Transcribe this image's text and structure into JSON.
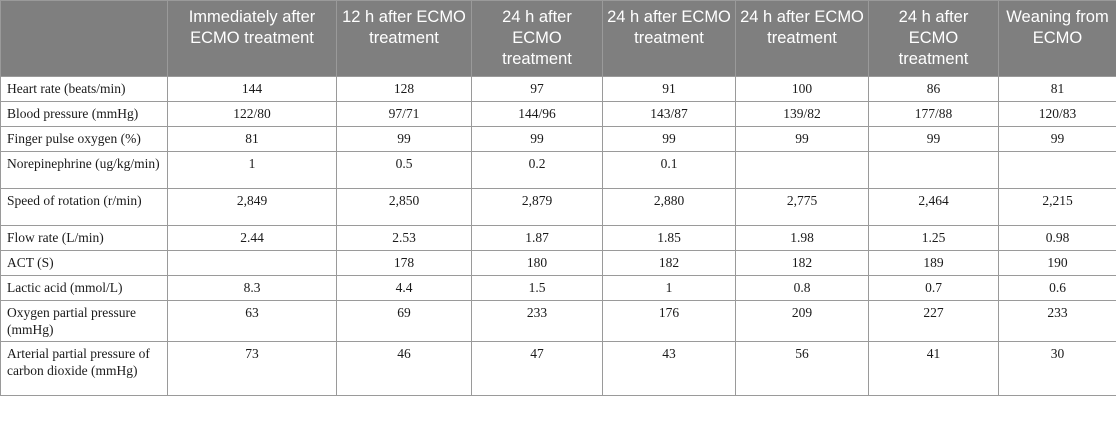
{
  "table": {
    "columns": [
      "",
      "Immediately after ECMO treatment",
      "12 h after ECMO treatment",
      "24 h after ECMO treatment",
      "24 h after ECMO treatment",
      "24 h after ECMO treatment",
      "24 h after ECMO treatment",
      "Weaning from ECMO"
    ],
    "rows": [
      [
        "Heart rate (beats/min)",
        "144",
        "128",
        "97",
        "91",
        "100",
        "86",
        "81"
      ],
      [
        "Blood pressure (mmHg)",
        "122/80",
        "97/71",
        "144/96",
        "143/87",
        "139/82",
        "177/88",
        "120/83"
      ],
      [
        "Finger pulse oxygen (%)",
        "81",
        "99",
        "99",
        "99",
        "99",
        "99",
        "99"
      ],
      [
        "Norepinephrine (ug/kg/min)",
        "1",
        "0.5",
        "0.2",
        "0.1",
        "",
        "",
        ""
      ],
      [
        "Speed of rotation (r/min)",
        "2,849",
        "2,850",
        "2,879",
        "2,880",
        "2,775",
        "2,464",
        "2,215"
      ],
      [
        "Flow rate (L/min)",
        "2.44",
        "2.53",
        "1.87",
        "1.85",
        "1.98",
        "1.25",
        "0.98"
      ],
      [
        "ACT (S)",
        "",
        "178",
        "180",
        "182",
        "182",
        "189",
        "190"
      ],
      [
        "Lactic acid (mmol/L)",
        "8.3",
        "4.4",
        "1.5",
        "1",
        "0.8",
        "0.7",
        "0.6"
      ],
      [
        "Oxygen partial pressure (mmHg)",
        "63",
        "69",
        "233",
        "176",
        "209",
        "227",
        "233"
      ],
      [
        "Arterial partial pressure of carbon dioxide (mmHg)",
        "73",
        "46",
        "47",
        "43",
        "56",
        "41",
        "30"
      ]
    ]
  }
}
